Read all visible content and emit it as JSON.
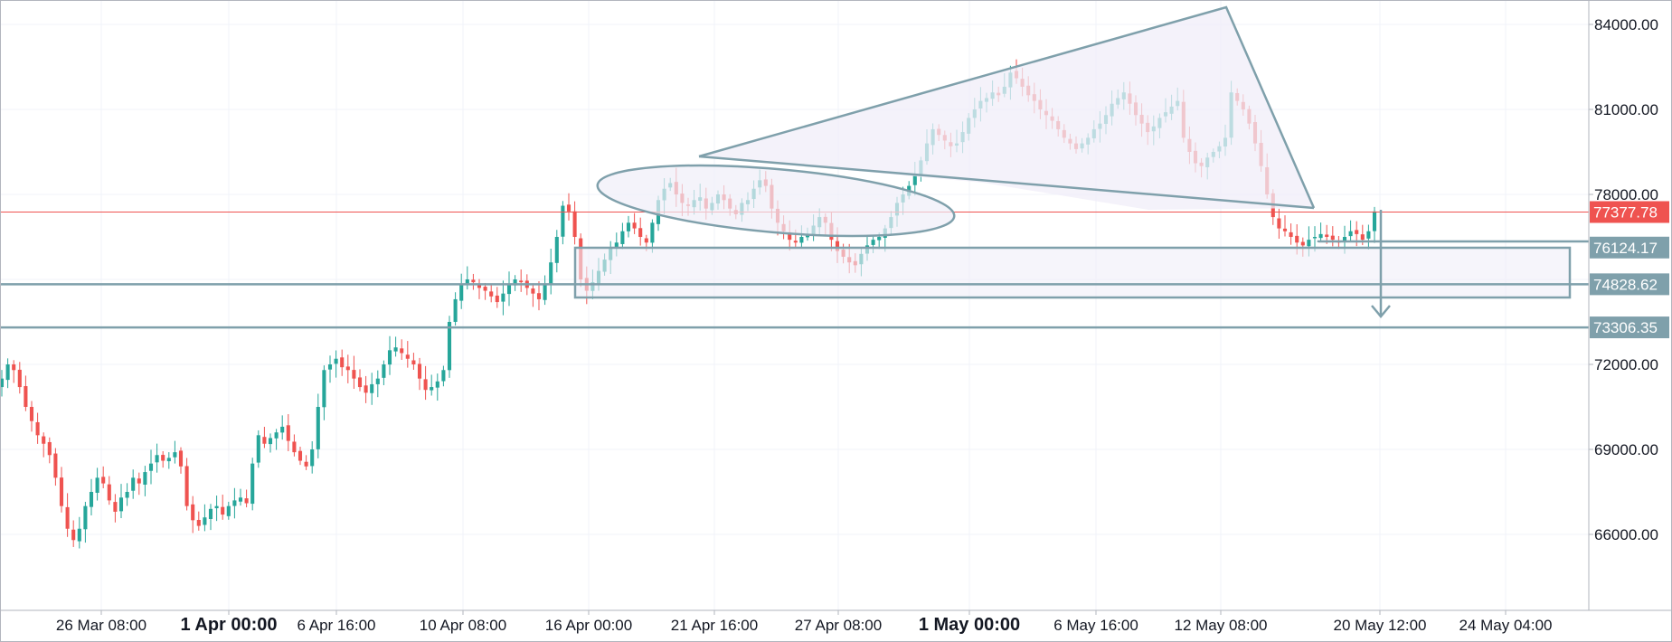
{
  "chart_data": {
    "type": "candlestick",
    "title": "",
    "colors": {
      "up": "#26a69a",
      "down": "#ef5350",
      "drawing": "#7fa0ab",
      "fill": "#f0eef8",
      "price_line": "#ef5350"
    },
    "x_ticks": [
      {
        "label": "26 Mar 08:00",
        "bold": false
      },
      {
        "label": "1 Apr 00:00",
        "bold": true
      },
      {
        "label": "6 Apr 16:00",
        "bold": false
      },
      {
        "label": "10 Apr 08:00",
        "bold": false
      },
      {
        "label": "16 Apr 00:00",
        "bold": false
      },
      {
        "label": "21 Apr 16:00",
        "bold": false
      },
      {
        "label": "27 Apr 08:00",
        "bold": false
      },
      {
        "label": "1 May 00:00",
        "bold": true
      },
      {
        "label": "6 May 16:00",
        "bold": false
      },
      {
        "label": "12 May 08:00",
        "bold": false
      },
      {
        "label": "20 May 12:00",
        "bold": false
      },
      {
        "label": "24 May 04:00",
        "bold": false
      }
    ],
    "y_ticks": [
      "84000.00",
      "81000.00",
      "78000.00",
      "72000.00",
      "69000.00",
      "66000.00"
    ],
    "ylim": [
      63200,
      84700
    ],
    "y_grid_values": [
      84000,
      81000,
      78000,
      75000,
      72000,
      69000,
      66000
    ],
    "price_labels": [
      {
        "value": 77377.78,
        "label": "77377.78",
        "kind": "current"
      },
      {
        "value": 76124.17,
        "label": "76124.17",
        "kind": "level"
      },
      {
        "value": 74828.62,
        "label": "74828.62",
        "kind": "level"
      },
      {
        "value": 73306.35,
        "label": "73306.35",
        "kind": "level"
      }
    ],
    "candle_closes": [
      71500,
      72000,
      71800,
      71200,
      70500,
      70000,
      69500,
      69200,
      68800,
      68000,
      67000,
      66200,
      65800,
      66200,
      67000,
      67500,
      68000,
      67800,
      67200,
      66800,
      67300,
      67500,
      68000,
      67800,
      68200,
      68500,
      68800,
      68600,
      68700,
      68900,
      68400,
      67000,
      66500,
      66300,
      66600,
      66900,
      67000,
      66700,
      67000,
      67200,
      67300,
      67100,
      68500,
      69500,
      69200,
      69400,
      69600,
      69800,
      69300,
      68900,
      68600,
      68400,
      69000,
      70500,
      71800,
      72000,
      72200,
      71900,
      71800,
      71500,
      71200,
      71000,
      71300,
      71500,
      72000,
      72500,
      72600,
      72400,
      72200,
      72000,
      71500,
      71100,
      71200,
      71400,
      71800,
      73500,
      74300,
      74800,
      75000,
      74900,
      74700,
      74600,
      74400,
      74200,
      74500,
      74800,
      75000,
      74900,
      74700,
      74500,
      74300,
      74800,
      75600,
      76500,
      77600,
      77400,
      76500,
      75000,
      74600,
      74900,
      75300,
      75700,
      76100,
      76300,
      76700,
      77000,
      76800,
      76500,
      76300,
      77000,
      77800,
      78200,
      78400,
      78000,
      77700,
      77600,
      77800,
      77900,
      77500,
      77700,
      78000,
      77800,
      77500,
      77300,
      77700,
      77800,
      78200,
      78500,
      78300,
      77500,
      77000,
      76700,
      76400,
      76300,
      76500,
      76600,
      76900,
      77200,
      77000,
      76400,
      76000,
      75800,
      75600,
      75500,
      75900,
      76200,
      76400,
      76500,
      76800,
      77200,
      77700,
      78000,
      78300,
      78700,
      79200,
      79800,
      80300,
      80100,
      79900,
      79700,
      79800,
      80200,
      80700,
      81000,
      81300,
      81400,
      81600,
      81500,
      81800,
      82300,
      82100,
      81800,
      81500,
      81300,
      81000,
      80800,
      80600,
      80300,
      80000,
      79800,
      79600,
      79800,
      80000,
      80300,
      80500,
      80800,
      81200,
      81400,
      81600,
      81200,
      80800,
      80500,
      80200,
      80400,
      80700,
      80900,
      81100,
      81300,
      80000,
      79500,
      79100,
      79000,
      79300,
      79500,
      79700,
      80000,
      81600,
      81300,
      81000,
      80500,
      79800,
      79000,
      78000,
      77200,
      76800,
      76700,
      76500,
      76300,
      76200,
      76400,
      76500,
      76600,
      76500,
      76400,
      76300,
      76500,
      76700,
      76600,
      76400,
      76700,
      77400
    ],
    "pattern_labels": []
  }
}
